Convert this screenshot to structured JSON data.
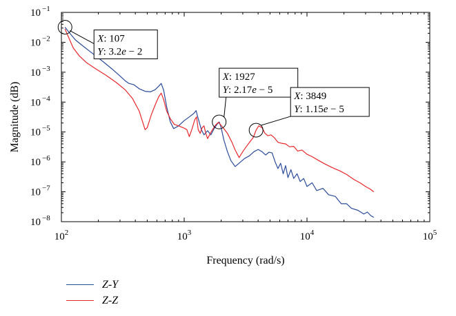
{
  "chart_data": {
    "type": "line",
    "xlabel": "Frequency (rad/s)",
    "ylabel": "Magnitude (dB)",
    "x_scale": "log",
    "y_scale": "log",
    "xlim": [
      100,
      100000
    ],
    "ylim": [
      1e-08,
      0.1
    ],
    "x_ticks": [
      {
        "value": 100,
        "base": "10",
        "exp": "2"
      },
      {
        "value": 1000,
        "base": "10",
        "exp": "3"
      },
      {
        "value": 10000,
        "base": "10",
        "exp": "4"
      },
      {
        "value": 100000,
        "base": "10",
        "exp": "5"
      }
    ],
    "y_ticks": [
      {
        "value": 1e-08,
        "base": "10",
        "exp": "−8"
      },
      {
        "value": 1e-07,
        "base": "10",
        "exp": "−7"
      },
      {
        "value": 1e-06,
        "base": "10",
        "exp": "−6"
      },
      {
        "value": 1e-05,
        "base": "10",
        "exp": "−5"
      },
      {
        "value": 0.0001,
        "base": "10",
        "exp": "−4"
      },
      {
        "value": 0.001,
        "base": "10",
        "exp": "−3"
      },
      {
        "value": 0.01,
        "base": "10",
        "exp": "−2"
      },
      {
        "value": 0.1,
        "base": "10",
        "exp": "−1"
      }
    ],
    "grid": false,
    "legend_position": "bottom-left, below plot",
    "series": [
      {
        "name": "Z-Y",
        "color": "#2a4a9a",
        "points": [
          [
            107,
            0.032
          ],
          [
            115,
            0.022
          ],
          [
            130,
            0.012
          ],
          [
            150,
            0.0075
          ],
          [
            180,
            0.0042
          ],
          [
            220,
            0.0022
          ],
          [
            260,
            0.00125
          ],
          [
            300,
            0.00075
          ],
          [
            330,
            0.00052
          ],
          [
            355,
            0.00042
          ],
          [
            390,
            0.00038
          ],
          [
            430,
            0.00028
          ],
          [
            480,
            0.00023
          ],
          [
            530,
            0.00022
          ],
          [
            580,
            0.00026
          ],
          [
            620,
            0.00034
          ],
          [
            650,
            0.00042
          ],
          [
            680,
            0.00025
          ],
          [
            720,
            7e-05
          ],
          [
            770,
            2.2e-05
          ],
          [
            820,
            1.3e-05
          ],
          [
            900,
            1.6e-05
          ],
          [
            1000,
            2.4e-05
          ],
          [
            1100,
            3.2e-05
          ],
          [
            1200,
            4.2e-05
          ],
          [
            1250,
            5.2e-05
          ],
          [
            1300,
            2.8e-05
          ],
          [
            1380,
            1.2e-05
          ],
          [
            1450,
            8e-06
          ],
          [
            1550,
            1.1e-05
          ],
          [
            1650,
            8e-06
          ],
          [
            1750,
            1.3e-05
          ],
          [
            1850,
            1.8e-05
          ],
          [
            1927,
            2.17e-05
          ],
          [
            2000,
            1.4e-05
          ],
          [
            2100,
            5.5e-06
          ],
          [
            2250,
            2.2e-06
          ],
          [
            2400,
            1.1e-06
          ],
          [
            2600,
            7e-07
          ],
          [
            2800,
            9e-07
          ],
          [
            3100,
            1.3e-06
          ],
          [
            3400,
            1.6e-06
          ],
          [
            3700,
            2.2e-06
          ],
          [
            4000,
            2.6e-06
          ],
          [
            4300,
            2.2e-06
          ],
          [
            4600,
            1.7e-06
          ],
          [
            4900,
            2.1e-06
          ],
          [
            5200,
            2e-06
          ],
          [
            5500,
            1e-06
          ],
          [
            5800,
            6e-07
          ],
          [
            6100,
            9e-07
          ],
          [
            6400,
            4e-07
          ],
          [
            6700,
            7.5e-07
          ],
          [
            7000,
            3e-07
          ],
          [
            7400,
            5.5e-07
          ],
          [
            7800,
            2.8e-07
          ],
          [
            8300,
            4e-07
          ],
          [
            8800,
            2.2e-07
          ],
          [
            9400,
            2.8e-07
          ],
          [
            10000,
            1.5e-07
          ],
          [
            11000,
            2e-07
          ],
          [
            12000,
            1.1e-07
          ],
          [
            13500,
            1.3e-07
          ],
          [
            15000,
            8e-08
          ],
          [
            17000,
            7e-08
          ],
          [
            19000,
            4e-08
          ],
          [
            21000,
            4e-08
          ],
          [
            23000,
            2.8e-08
          ],
          [
            26000,
            2.4e-08
          ],
          [
            29000,
            1.8e-08
          ],
          [
            31000,
            2.1e-08
          ],
          [
            33000,
            1.6e-08
          ],
          [
            35000,
            1.4e-08
          ]
        ]
      },
      {
        "name": "Z-Z",
        "color": "#e8262a",
        "points": [
          [
            107,
            0.028
          ],
          [
            115,
            0.014
          ],
          [
            125,
            0.0065
          ],
          [
            140,
            0.0035
          ],
          [
            160,
            0.0021
          ],
          [
            190,
            0.0013
          ],
          [
            230,
            0.0008
          ],
          [
            280,
            0.00045
          ],
          [
            330,
            0.00026
          ],
          [
            380,
            0.00013
          ],
          [
            430,
            5e-05
          ],
          [
            480,
            1.2e-05
          ],
          [
            500,
            1.4e-05
          ],
          [
            540,
            3.8e-05
          ],
          [
            580,
            8e-05
          ],
          [
            620,
            0.00015
          ],
          [
            650,
            0.0002
          ],
          [
            680,
            0.00012
          ],
          [
            720,
            5e-05
          ],
          [
            770,
            2.8e-05
          ],
          [
            830,
            1.8e-05
          ],
          [
            900,
            1.6e-05
          ],
          [
            980,
            1.4e-05
          ],
          [
            1050,
            1.2e-05
          ],
          [
            1100,
            7e-06
          ],
          [
            1160,
            1.3e-05
          ],
          [
            1220,
            2.6e-05
          ],
          [
            1260,
            3.2e-05
          ],
          [
            1300,
            1.2e-05
          ],
          [
            1350,
            9e-06
          ],
          [
            1400,
            1.4e-05
          ],
          [
            1450,
            1.6e-05
          ],
          [
            1500,
            9e-06
          ],
          [
            1550,
            6e-06
          ],
          [
            1620,
            8.5e-06
          ],
          [
            1700,
            1.2e-05
          ],
          [
            1800,
            1.7e-05
          ],
          [
            1900,
            2.1e-05
          ],
          [
            1990,
            1.7e-05
          ],
          [
            2100,
            1.3e-05
          ],
          [
            2250,
            9e-06
          ],
          [
            2450,
            4.5e-06
          ],
          [
            2600,
            2.5e-06
          ],
          [
            2800,
            1.4e-06
          ],
          [
            3000,
            2.2e-06
          ],
          [
            3200,
            3.2e-06
          ],
          [
            3400,
            4.5e-06
          ],
          [
            3650,
            6.5e-06
          ],
          [
            3849,
            1.15e-05
          ],
          [
            4050,
            1.6e-05
          ],
          [
            4300,
            1.4e-05
          ],
          [
            4550,
            9e-06
          ],
          [
            4800,
            7.5e-06
          ],
          [
            5100,
            8e-06
          ],
          [
            5400,
            6.5e-06
          ],
          [
            5800,
            4.5e-06
          ],
          [
            6200,
            4.2e-06
          ],
          [
            6700,
            4e-06
          ],
          [
            7200,
            3.2e-06
          ],
          [
            7800,
            3.3e-06
          ],
          [
            8400,
            2.3e-06
          ],
          [
            9100,
            2.5e-06
          ],
          [
            10000,
            1.8e-06
          ],
          [
            11000,
            1.5e-06
          ],
          [
            12500,
            1.1e-06
          ],
          [
            14000,
            8.5e-07
          ],
          [
            16000,
            6.5e-07
          ],
          [
            18500,
            5e-07
          ],
          [
            21000,
            3.8e-07
          ],
          [
            24000,
            2.6e-07
          ],
          [
            27000,
            2e-07
          ],
          [
            30000,
            1.5e-07
          ],
          [
            33000,
            1.2e-07
          ],
          [
            35000,
            1e-07
          ]
        ]
      }
    ],
    "annotations": [
      {
        "x": 107,
        "y": 0.032,
        "x_label": "X",
        "x_text": ": 107",
        "y_label": "Y",
        "y_text": ": 3.2",
        "y_e": "e",
        "y_tail": " − 2",
        "box_dx": 42,
        "box_dy": 4
      },
      {
        "x": 1927,
        "y": 2.17e-05,
        "x_label": "X",
        "x_text": ": 1927",
        "y_label": "Y",
        "y_text": ": 2.17",
        "y_e": "e",
        "y_tail": " − 5",
        "box_dx": 0,
        "box_dy": -78
      },
      {
        "x": 3849,
        "y": 1.15e-05,
        "x_label": "X",
        "x_text": ": 3849",
        "y_label": "Y",
        "y_text": ": 1.15",
        "y_e": "e",
        "y_tail": " − 5",
        "box_dx": 50,
        "box_dy": -62
      }
    ]
  },
  "legend": {
    "items": [
      {
        "label": "Z-Y",
        "color": "#2a4a9a"
      },
      {
        "label": "Z-Z",
        "color": "#e8262a"
      }
    ]
  }
}
